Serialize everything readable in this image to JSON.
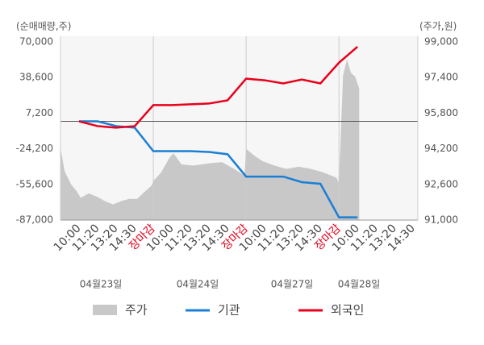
{
  "chart_data": {
    "type": "line",
    "y_label": "(순매매량,주)",
    "y2_label": "(주가,원)",
    "xlim": [
      0,
      19.25
    ],
    "xticks": [
      {
        "value": 1,
        "label": "10:00"
      },
      {
        "value": 2,
        "label": "11:20"
      },
      {
        "value": 3,
        "label": "13:20"
      },
      {
        "value": 4,
        "label": "14:30"
      },
      {
        "value": 5,
        "label": "장마감",
        "color": "#e8001c"
      },
      {
        "value": 6,
        "label": "10:00"
      },
      {
        "value": 7,
        "label": "11:20"
      },
      {
        "value": 8,
        "label": "13:20"
      },
      {
        "value": 9,
        "label": "14:30"
      },
      {
        "value": 10,
        "label": "장마감",
        "color": "#e8001c"
      },
      {
        "value": 11,
        "label": "10:00"
      },
      {
        "value": 12,
        "label": "11:20"
      },
      {
        "value": 13,
        "label": "13:20"
      },
      {
        "value": 14,
        "label": "14:30"
      },
      {
        "value": 15,
        "label": "장마감",
        "color": "#e8001c"
      },
      {
        "value": 16,
        "label": "10:00"
      },
      {
        "value": 17,
        "label": "11:20"
      },
      {
        "value": 18,
        "label": "13:20"
      },
      {
        "value": 19,
        "label": "14:30"
      }
    ],
    "dates": [
      "04월23일",
      "04월24일",
      "04월27일",
      "04월28일"
    ],
    "ylim": [
      -87000,
      70000
    ],
    "yticks": [
      {
        "value": 70000,
        "label": "70,000"
      },
      {
        "value": 38600,
        "label": "38,600"
      },
      {
        "value": 7200,
        "label": "7,200"
      },
      {
        "value": -24200,
        "label": "-24,200"
      },
      {
        "value": -55600,
        "label": "-55,600"
      },
      {
        "value": -87000,
        "label": "-87,000"
      }
    ],
    "y2lim": [
      91000,
      99000
    ],
    "y2ticks": [
      {
        "value": 99000,
        "label": "99,000"
      },
      {
        "value": 97400,
        "label": "97,400"
      },
      {
        "value": 95800,
        "label": "95,800"
      },
      {
        "value": 94200,
        "label": "94,200"
      },
      {
        "value": 92600,
        "label": "92,600"
      },
      {
        "value": 91000,
        "label": "91,000"
      }
    ],
    "series": [
      {
        "name": "주가",
        "color": "#c8c8c8",
        "kind": "area",
        "axis": "y2",
        "x": [
          0,
          0.22,
          0.57,
          0.87,
          1.09,
          1.52,
          1.96,
          2.39,
          2.83,
          3.26,
          3.7,
          4.13,
          4.57,
          4.91,
          5,
          5.43,
          5.87,
          6.09,
          6.52,
          7.17,
          8.04,
          8.7,
          9.35,
          9.91,
          10,
          10.43,
          10.87,
          11.52,
          12.17,
          12.83,
          13.48,
          14.13,
          14.87,
          15,
          15.22,
          15.43,
          15.65,
          15.87,
          16.09
        ],
        "values": [
          94250,
          93200,
          92600,
          92300,
          92000,
          92200,
          92050,
          91850,
          91700,
          91850,
          91950,
          91950,
          92300,
          92550,
          92750,
          93150,
          93800,
          94000,
          93500,
          93450,
          93550,
          93600,
          93300,
          93000,
          94200,
          93900,
          93650,
          93450,
          93300,
          93400,
          93300,
          93150,
          92900,
          92650,
          97500,
          98200,
          97600,
          97450,
          96900
        ]
      },
      {
        "name": "기관",
        "color": "#1a7fd4",
        "kind": "line",
        "x": [
          1,
          2,
          3,
          4,
          5,
          6,
          7,
          8,
          9,
          10,
          11,
          12,
          13,
          14,
          15,
          16
        ],
        "values": [
          0,
          0,
          -4200,
          -5600,
          -26300,
          -26300,
          -26300,
          -27000,
          -29000,
          -48700,
          -48700,
          -48700,
          -53600,
          -55000,
          -84600,
          -84600
        ]
      },
      {
        "name": "외국인",
        "color": "#e8001c",
        "kind": "line",
        "x": [
          1,
          2,
          3,
          4,
          5,
          6,
          7,
          8,
          9,
          10,
          11,
          12,
          13,
          14,
          15,
          16
        ],
        "values": [
          0,
          -4200,
          -5600,
          -4200,
          14300,
          14300,
          15000,
          15700,
          18500,
          37600,
          36200,
          33400,
          36900,
          33400,
          51700,
          65800
        ]
      }
    ]
  }
}
